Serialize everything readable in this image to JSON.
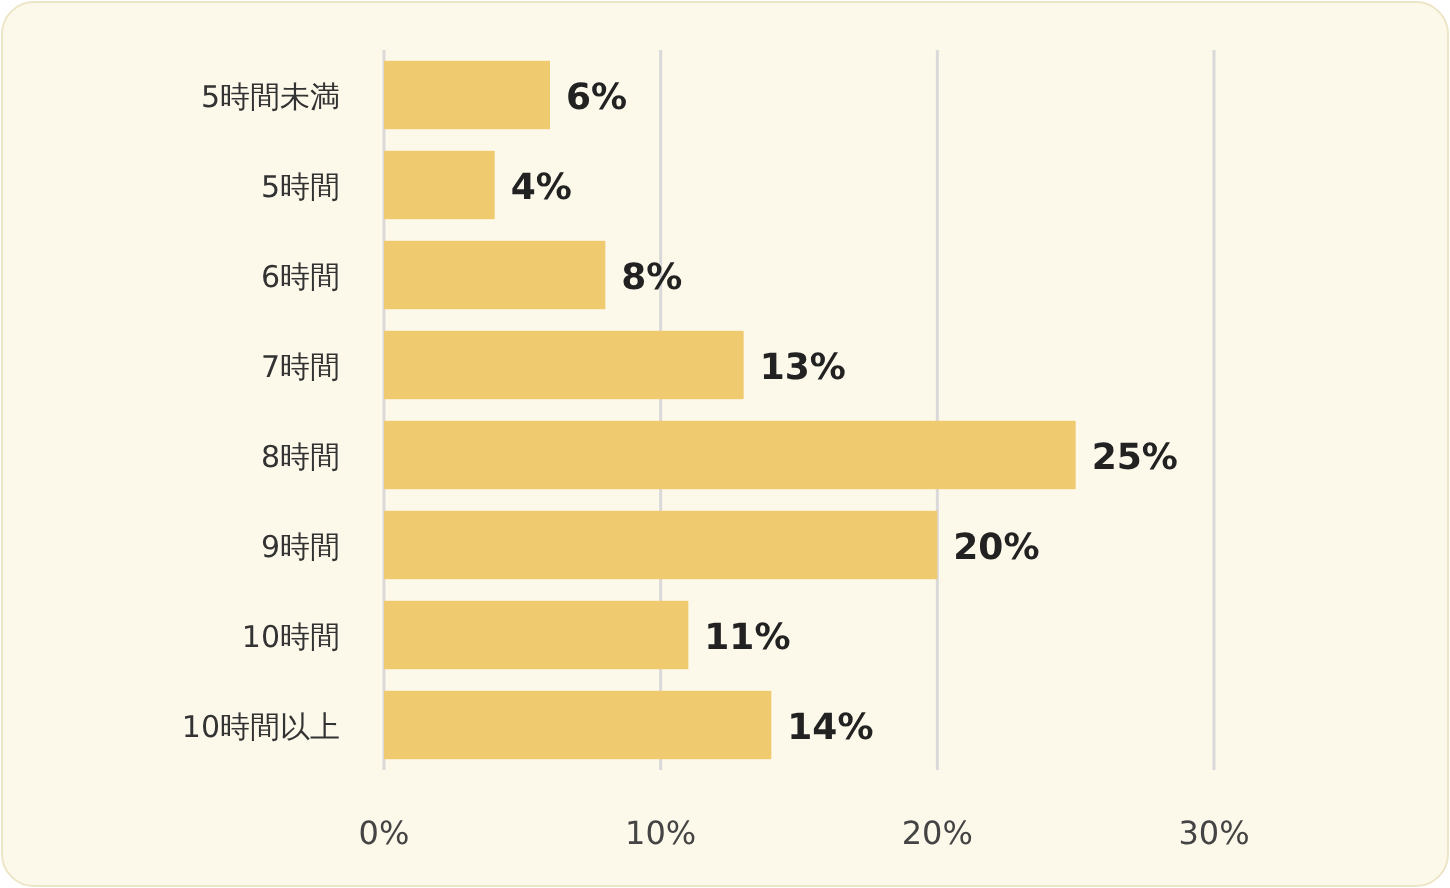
{
  "chart_data": {
    "type": "bar",
    "orientation": "horizontal",
    "categories": [
      "5時間未満",
      "5時間",
      "6時間",
      "7時間",
      "8時間",
      "9時間",
      "10時間",
      "10時間以上"
    ],
    "values": [
      6,
      4,
      8,
      13,
      25,
      20,
      11,
      14
    ],
    "value_labels": [
      "6%",
      "4%",
      "8%",
      "13%",
      "25%",
      "20%",
      "11%",
      "14%"
    ],
    "color": "#f0ca6f",
    "xlim": [
      0,
      30
    ],
    "xticks": [
      {
        "value": 0,
        "label": "0%"
      },
      {
        "value": 10,
        "label": "10%"
      },
      {
        "value": 20,
        "label": "20%"
      },
      {
        "value": 30,
        "label": "30%"
      }
    ],
    "grid": "x"
  }
}
